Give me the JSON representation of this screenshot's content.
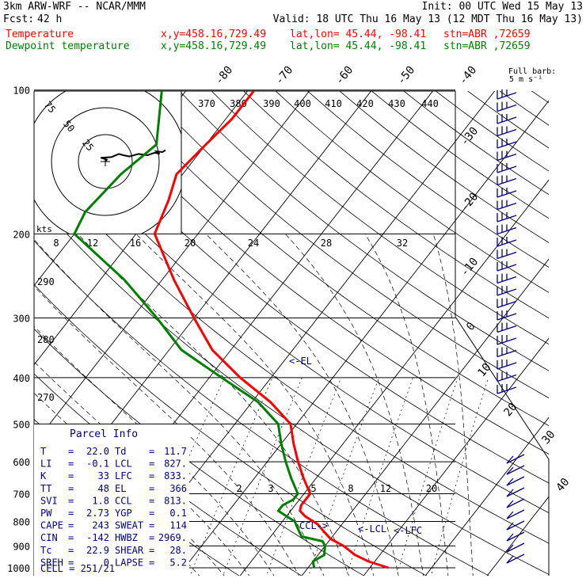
{
  "header": {
    "model": "3km ARW-WRF -- NCAR/MMM",
    "init": "Init: 00 UTC Wed 15 May 13",
    "fcst_label": "Fcst:",
    "fcst_value": "42 h",
    "valid": "Valid: 18 UTC Thu 16 May 13 (12 MDT Thu 16 May 13)",
    "temp_label": "Temperature",
    "dew_label": "Dewpoint temperature",
    "xy": "x,y=458.16,729.49",
    "latlon": "lat,lon= 45.44, -98.41",
    "stn": "stn=ABR ,72659"
  },
  "barb_legend": {
    "line1": "Full barb:",
    "line2": "5 m s⁻¹"
  },
  "hodograph": {
    "rings": [
      "25",
      "50",
      "75"
    ],
    "units": "kts",
    "trace": [
      [
        0,
        0
      ],
      [
        1,
        3
      ],
      [
        -3,
        6
      ],
      [
        4,
        7
      ],
      [
        9,
        12
      ],
      [
        12,
        10
      ],
      [
        16,
        8
      ],
      [
        22,
        12
      ],
      [
        28,
        10
      ],
      [
        33,
        14
      ],
      [
        36,
        12
      ],
      [
        34,
        16
      ],
      [
        38,
        15
      ],
      [
        40,
        18
      ]
    ]
  },
  "labels": {
    "el": "<-EL",
    "lcl": "<-LCL",
    "lfc": "<-LFC",
    "ccl": "CCL->"
  },
  "parcel": {
    "title": "Parcel Info",
    "rows": [
      [
        "T",
        "22.0",
        "Td",
        "11.7"
      ],
      [
        "LI",
        "-0.1",
        "LCL",
        "827."
      ],
      [
        "K",
        "33",
        "LFC",
        "833."
      ],
      [
        "TT",
        "48",
        "EL",
        "366"
      ],
      [
        "SVI",
        "1.8",
        "CCL",
        "813."
      ],
      [
        "PW",
        "2.73",
        "YGP",
        "0.1"
      ],
      [
        "CAPE",
        "243",
        "SWEAT",
        "114"
      ],
      [
        "CIN",
        "-142",
        "HWBZ",
        "2969."
      ],
      [
        "Tc",
        "22.9",
        "SHEAR",
        "28."
      ],
      [
        "SREH",
        "0",
        "LAPSE",
        "5.2"
      ]
    ],
    "cell": "CELL = 251/21"
  },
  "chart_data": {
    "type": "line",
    "pressure_levels": [
      100,
      200,
      300,
      400,
      500,
      600,
      700,
      800,
      900,
      1000
    ],
    "isotherm_labels": [
      -80,
      -70,
      -60,
      -50,
      -40,
      -30,
      -20,
      -10,
      0,
      10,
      20,
      30,
      40
    ],
    "theta_labels": [
      370,
      380,
      390,
      400,
      410,
      420,
      430,
      440
    ],
    "mixing_ratio_labels": [
      2,
      3,
      5,
      8,
      12,
      20
    ],
    "upper_mixing_labels": [
      8,
      12,
      16,
      20,
      24,
      28,
      32
    ],
    "left_theta_labels": [
      290,
      280,
      270
    ],
    "series": [
      {
        "name": "Temperature",
        "color": "#ff0000",
        "points": [
          [
            1000,
            23
          ],
          [
            970,
            19
          ],
          [
            940,
            16
          ],
          [
            900,
            13
          ],
          [
            870,
            10
          ],
          [
            840,
            8
          ],
          [
            810,
            6
          ],
          [
            780,
            3
          ],
          [
            760,
            1.5
          ],
          [
            740,
            1
          ],
          [
            720,
            1
          ],
          [
            700,
            1
          ],
          [
            650,
            -2
          ],
          [
            600,
            -5
          ],
          [
            550,
            -8
          ],
          [
            500,
            -11
          ],
          [
            450,
            -17
          ],
          [
            400,
            -25
          ],
          [
            350,
            -33
          ],
          [
            300,
            -40
          ],
          [
            250,
            -48
          ],
          [
            200,
            -57
          ],
          [
            170,
            -59
          ],
          [
            150,
            -61
          ],
          [
            130,
            -60
          ],
          [
            115,
            -59
          ],
          [
            100,
            -59
          ]
        ]
      },
      {
        "name": "Dewpoint temperature",
        "color": "#008000",
        "points": [
          [
            1000,
            11
          ],
          [
            970,
            10
          ],
          [
            940,
            11
          ],
          [
            900,
            10
          ],
          [
            880,
            9
          ],
          [
            860,
            5
          ],
          [
            840,
            4
          ],
          [
            820,
            3
          ],
          [
            800,
            2
          ],
          [
            780,
            0
          ],
          [
            760,
            -2
          ],
          [
            740,
            -2
          ],
          [
            720,
            -1
          ],
          [
            700,
            -1
          ],
          [
            650,
            -4
          ],
          [
            600,
            -7
          ],
          [
            550,
            -10
          ],
          [
            500,
            -13
          ],
          [
            450,
            -19
          ],
          [
            400,
            -28
          ],
          [
            350,
            -38
          ],
          [
            300,
            -46
          ],
          [
            250,
            -56
          ],
          [
            200,
            -70
          ],
          [
            180,
            -71
          ],
          [
            150,
            -70
          ],
          [
            130,
            -68
          ],
          [
            100,
            -74
          ]
        ]
      }
    ]
  }
}
